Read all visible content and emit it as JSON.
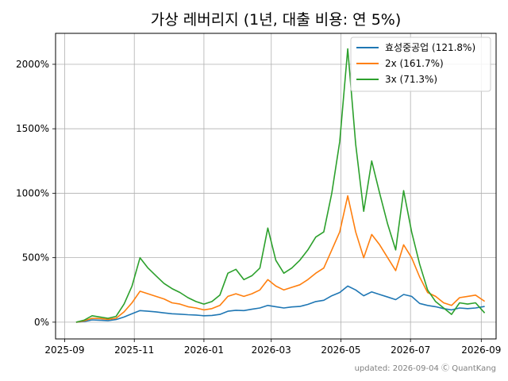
{
  "chart_data": {
    "type": "line",
    "title": "가상 레버리지 (1년, 대출 비용: 연 5%)",
    "xlabel": "",
    "ylabel": "",
    "x_tick_labels": [
      "2025-09",
      "2025-11",
      "2026-01",
      "2026-03",
      "2026-05",
      "2026-07",
      "2026-09"
    ],
    "x_tick_dates": [
      "2025-09-01",
      "2025-11-01",
      "2026-01-01",
      "2026-03-01",
      "2026-05-01",
      "2026-07-01",
      "2026-09-01"
    ],
    "xlim": [
      "2025-08-24",
      "2026-09-14"
    ],
    "y_tick_labels": [
      "0%",
      "500%",
      "1000%",
      "1500%",
      "2000%"
    ],
    "y_ticks": [
      0,
      500,
      1000,
      1500,
      2000
    ],
    "ylim": [
      -130,
      2240
    ],
    "grid": true,
    "legend_position": "upper right",
    "footer": "updated: 2026-09-04 Ⓒ QuantKang",
    "series": [
      {
        "name": "효성중공업 (121.8%)",
        "color": "#1f77b4",
        "points": [
          [
            "2025-09-11",
            0
          ],
          [
            "2025-09-18",
            5
          ],
          [
            "2025-09-25",
            18
          ],
          [
            "2025-10-02",
            15
          ],
          [
            "2025-10-09",
            12
          ],
          [
            "2025-10-16",
            20
          ],
          [
            "2025-10-23",
            40
          ],
          [
            "2025-10-30",
            65
          ],
          [
            "2025-11-06",
            90
          ],
          [
            "2025-11-13",
            85
          ],
          [
            "2025-11-20",
            80
          ],
          [
            "2025-11-27",
            72
          ],
          [
            "2025-12-04",
            65
          ],
          [
            "2025-12-11",
            62
          ],
          [
            "2025-12-18",
            58
          ],
          [
            "2025-12-25",
            55
          ],
          [
            "2026-01-01",
            50
          ],
          [
            "2026-01-08",
            52
          ],
          [
            "2026-01-15",
            60
          ],
          [
            "2026-01-22",
            85
          ],
          [
            "2026-01-29",
            92
          ],
          [
            "2026-02-05",
            90
          ],
          [
            "2026-02-12",
            100
          ],
          [
            "2026-02-19",
            110
          ],
          [
            "2026-02-26",
            130
          ],
          [
            "2026-03-05",
            120
          ],
          [
            "2026-03-12",
            110
          ],
          [
            "2026-03-19",
            118
          ],
          [
            "2026-03-26",
            122
          ],
          [
            "2026-04-02",
            138
          ],
          [
            "2026-04-09",
            160
          ],
          [
            "2026-04-16",
            170
          ],
          [
            "2026-04-23",
            205
          ],
          [
            "2026-04-30",
            230
          ],
          [
            "2026-05-07",
            280
          ],
          [
            "2026-05-14",
            250
          ],
          [
            "2026-05-21",
            205
          ],
          [
            "2026-05-28",
            235
          ],
          [
            "2026-06-04",
            215
          ],
          [
            "2026-06-11",
            195
          ],
          [
            "2026-06-18",
            175
          ],
          [
            "2026-06-25",
            215
          ],
          [
            "2026-07-02",
            200
          ],
          [
            "2026-07-09",
            145
          ],
          [
            "2026-07-16",
            130
          ],
          [
            "2026-07-23",
            120
          ],
          [
            "2026-07-30",
            105
          ],
          [
            "2026-08-06",
            95
          ],
          [
            "2026-08-13",
            110
          ],
          [
            "2026-08-20",
            105
          ],
          [
            "2026-08-27",
            110
          ],
          [
            "2026-09-04",
            122
          ]
        ]
      },
      {
        "name": "2x (161.7%)",
        "color": "#ff7f0e",
        "points": [
          [
            "2025-09-11",
            0
          ],
          [
            "2025-09-18",
            10
          ],
          [
            "2025-09-25",
            30
          ],
          [
            "2025-10-02",
            28
          ],
          [
            "2025-10-09",
            22
          ],
          [
            "2025-10-16",
            30
          ],
          [
            "2025-10-23",
            80
          ],
          [
            "2025-10-30",
            150
          ],
          [
            "2025-11-06",
            240
          ],
          [
            "2025-11-13",
            220
          ],
          [
            "2025-11-20",
            200
          ],
          [
            "2025-11-27",
            180
          ],
          [
            "2025-12-04",
            150
          ],
          [
            "2025-12-11",
            140
          ],
          [
            "2025-12-18",
            120
          ],
          [
            "2025-12-25",
            110
          ],
          [
            "2026-01-01",
            95
          ],
          [
            "2026-01-08",
            105
          ],
          [
            "2026-01-15",
            130
          ],
          [
            "2026-01-22",
            200
          ],
          [
            "2026-01-29",
            220
          ],
          [
            "2026-02-05",
            200
          ],
          [
            "2026-02-12",
            220
          ],
          [
            "2026-02-19",
            250
          ],
          [
            "2026-02-26",
            330
          ],
          [
            "2026-03-05",
            280
          ],
          [
            "2026-03-12",
            250
          ],
          [
            "2026-03-19",
            270
          ],
          [
            "2026-03-26",
            290
          ],
          [
            "2026-04-02",
            330
          ],
          [
            "2026-04-09",
            380
          ],
          [
            "2026-04-16",
            420
          ],
          [
            "2026-04-23",
            560
          ],
          [
            "2026-04-30",
            700
          ],
          [
            "2026-05-07",
            980
          ],
          [
            "2026-05-14",
            700
          ],
          [
            "2026-05-21",
            500
          ],
          [
            "2026-05-28",
            680
          ],
          [
            "2026-06-04",
            600
          ],
          [
            "2026-06-11",
            500
          ],
          [
            "2026-06-18",
            400
          ],
          [
            "2026-06-25",
            600
          ],
          [
            "2026-07-02",
            500
          ],
          [
            "2026-07-09",
            350
          ],
          [
            "2026-07-16",
            230
          ],
          [
            "2026-07-23",
            200
          ],
          [
            "2026-07-30",
            150
          ],
          [
            "2026-08-06",
            130
          ],
          [
            "2026-08-13",
            190
          ],
          [
            "2026-08-20",
            200
          ],
          [
            "2026-08-27",
            210
          ],
          [
            "2026-09-04",
            162
          ]
        ]
      },
      {
        "name": "3x (71.3%)",
        "color": "#2ca02c",
        "points": [
          [
            "2025-09-11",
            0
          ],
          [
            "2025-09-18",
            15
          ],
          [
            "2025-09-25",
            50
          ],
          [
            "2025-10-02",
            40
          ],
          [
            "2025-10-09",
            30
          ],
          [
            "2025-10-16",
            45
          ],
          [
            "2025-10-23",
            140
          ],
          [
            "2025-10-30",
            280
          ],
          [
            "2025-11-06",
            500
          ],
          [
            "2025-11-13",
            420
          ],
          [
            "2025-11-20",
            360
          ],
          [
            "2025-11-27",
            300
          ],
          [
            "2025-12-04",
            260
          ],
          [
            "2025-12-11",
            230
          ],
          [
            "2025-12-18",
            190
          ],
          [
            "2025-12-25",
            160
          ],
          [
            "2026-01-01",
            140
          ],
          [
            "2026-01-08",
            160
          ],
          [
            "2026-01-15",
            210
          ],
          [
            "2026-01-22",
            380
          ],
          [
            "2026-01-29",
            410
          ],
          [
            "2026-02-05",
            330
          ],
          [
            "2026-02-12",
            360
          ],
          [
            "2026-02-19",
            420
          ],
          [
            "2026-02-26",
            730
          ],
          [
            "2026-03-05",
            480
          ],
          [
            "2026-03-12",
            380
          ],
          [
            "2026-03-19",
            420
          ],
          [
            "2026-03-26",
            480
          ],
          [
            "2026-04-02",
            560
          ],
          [
            "2026-04-09",
            660
          ],
          [
            "2026-04-16",
            700
          ],
          [
            "2026-04-23",
            1000
          ],
          [
            "2026-04-30",
            1400
          ],
          [
            "2026-05-07",
            2120
          ],
          [
            "2026-05-14",
            1380
          ],
          [
            "2026-05-21",
            860
          ],
          [
            "2026-05-28",
            1250
          ],
          [
            "2026-06-04",
            1000
          ],
          [
            "2026-06-11",
            760
          ],
          [
            "2026-06-18",
            560
          ],
          [
            "2026-06-25",
            1020
          ],
          [
            "2026-07-02",
            700
          ],
          [
            "2026-07-09",
            450
          ],
          [
            "2026-07-16",
            250
          ],
          [
            "2026-07-23",
            160
          ],
          [
            "2026-07-30",
            110
          ],
          [
            "2026-08-06",
            60
          ],
          [
            "2026-08-13",
            150
          ],
          [
            "2026-08-20",
            140
          ],
          [
            "2026-08-27",
            150
          ],
          [
            "2026-09-04",
            71
          ]
        ]
      }
    ]
  }
}
